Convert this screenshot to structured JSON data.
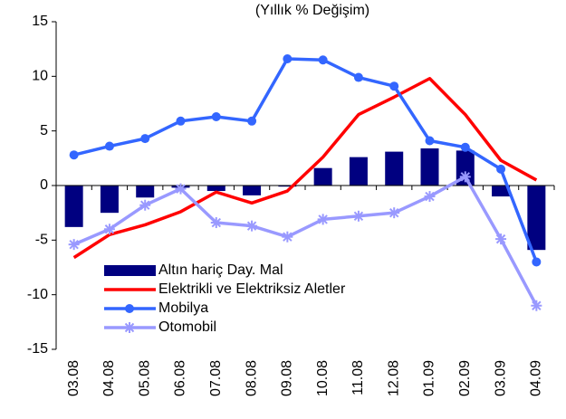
{
  "chart_data": {
    "type": "combo",
    "title": "(Yıllık % Değişim)",
    "categories": [
      "03.08",
      "04.08",
      "05.08",
      "06.08",
      "07.08",
      "08.08",
      "09.08",
      "10.08",
      "11.08",
      "12.08",
      "01.09",
      "02.09",
      "03.09",
      "04.09"
    ],
    "ylim": [
      -15,
      15
    ],
    "yticks": [
      -15,
      -10,
      -5,
      0,
      5,
      10,
      15
    ],
    "legend": "lower-left",
    "series": [
      {
        "name": "Altın hariç Day. Mal",
        "type": "bar",
        "color": "#000080",
        "values": [
          -3.8,
          -2.5,
          -1.1,
          -0.2,
          -0.5,
          -0.9,
          -0.1,
          1.6,
          2.6,
          3.1,
          3.4,
          3.2,
          -1.0,
          -5.9
        ]
      },
      {
        "name": "Elektrikli ve Elektriksiz Aletler",
        "type": "line",
        "color": "#ff0000",
        "values": [
          -6.6,
          -4.5,
          -3.6,
          -2.4,
          -0.6,
          -1.6,
          -0.5,
          2.6,
          6.5,
          8.1,
          9.8,
          6.5,
          2.3,
          0.5
        ]
      },
      {
        "name": "Mobilya",
        "type": "line",
        "marker": "circle",
        "color": "#3366ff",
        "values": [
          2.8,
          3.6,
          4.3,
          5.9,
          6.3,
          5.9,
          11.6,
          11.5,
          9.9,
          9.1,
          4.1,
          3.5,
          1.5,
          -7.0
        ]
      },
      {
        "name": "Otomobil",
        "type": "line",
        "marker": "star",
        "color": "#9999ff",
        "values": [
          -5.4,
          -4.0,
          -1.8,
          -0.3,
          -3.4,
          -3.7,
          -4.7,
          -3.1,
          -2.8,
          -2.5,
          -1.0,
          0.8,
          -4.9,
          -11.0
        ]
      }
    ]
  }
}
